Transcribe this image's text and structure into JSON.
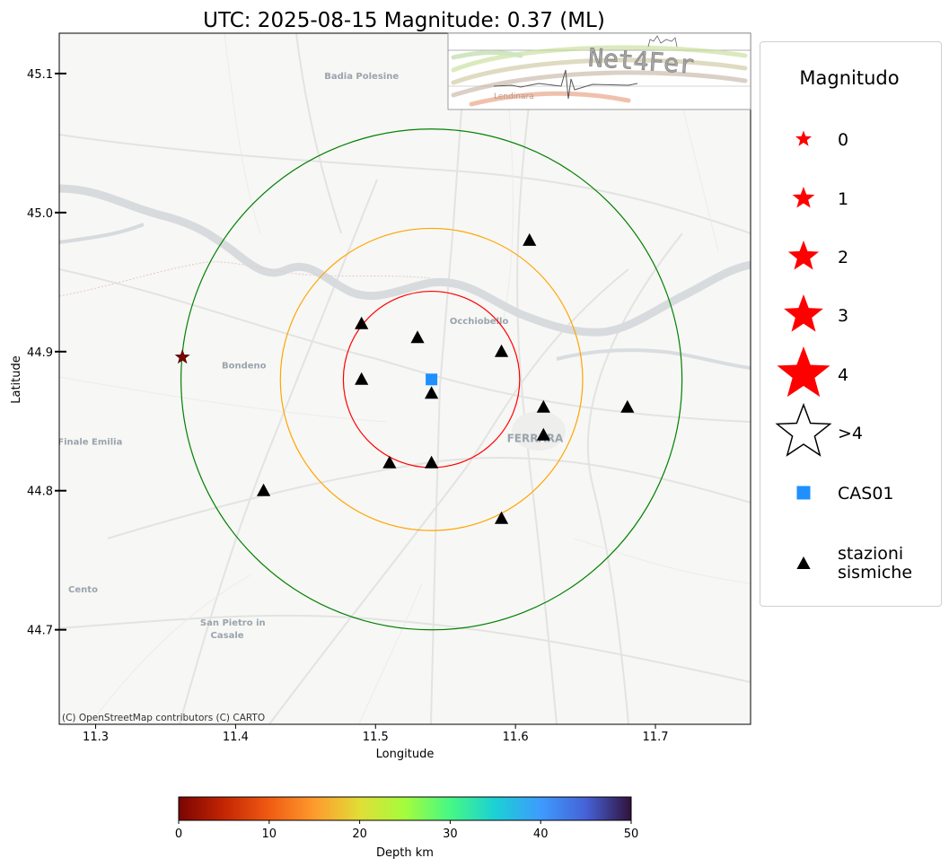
{
  "title": "UTC: 2025-08-15 Magnitude: 0.37 (ML)",
  "map": {
    "xlabel": "Longitude",
    "ylabel": "Latitude",
    "xlim": [
      11.274,
      11.768
    ],
    "ylim": [
      44.632,
      45.129
    ],
    "xticks": [
      11.3,
      11.4,
      11.5,
      11.6,
      11.7
    ],
    "yticks": [
      44.7,
      44.8,
      44.9,
      45.0,
      45.1
    ],
    "attribution": "(C) OpenStreetMap contributors (C) CARTO",
    "place_labels": [
      {
        "text": "Badia Polesine",
        "lon": 11.49,
        "lat": 45.096
      },
      {
        "text": "Occhiobello",
        "lon": 11.574,
        "lat": 44.92
      },
      {
        "text": "Bondeno",
        "lon": 11.406,
        "lat": 44.888
      },
      {
        "text": "Finale Emilia",
        "lon": 11.296,
        "lat": 44.833
      },
      {
        "text": "FERRARA",
        "lon": 11.614,
        "lat": 44.835
      },
      {
        "text": "Cento",
        "lon": 11.291,
        "lat": 44.727
      },
      {
        "text": "San Pietro in",
        "lon": 11.398,
        "lat": 44.703
      },
      {
        "text": "Casale",
        "lon": 11.394,
        "lat": 44.694
      }
    ]
  },
  "chart_data": {
    "type": "scatter",
    "title": "UTC: 2025-08-15 Magnitude: 0.37 (ML)",
    "xlabel": "Longitude",
    "ylabel": "Latitude",
    "xlim": [
      11.274,
      11.768
    ],
    "ylim": [
      44.632,
      45.129
    ],
    "event": {
      "lon": 11.362,
      "lat": 44.896,
      "magnitude": 0.37,
      "depth_km": 2,
      "color": "#7a0403"
    },
    "reference_station": {
      "name": "CAS01",
      "lon": 11.54,
      "lat": 44.88,
      "color": "#1e90ff"
    },
    "stations": [
      {
        "lon": 11.61,
        "lat": 44.98
      },
      {
        "lon": 11.49,
        "lat": 44.92
      },
      {
        "lon": 11.53,
        "lat": 44.91
      },
      {
        "lon": 11.59,
        "lat": 44.9
      },
      {
        "lon": 11.49,
        "lat": 44.88
      },
      {
        "lon": 11.54,
        "lat": 44.87
      },
      {
        "lon": 11.62,
        "lat": 44.86
      },
      {
        "lon": 11.68,
        "lat": 44.86
      },
      {
        "lon": 11.62,
        "lat": 44.84
      },
      {
        "lon": 11.51,
        "lat": 44.82
      },
      {
        "lon": 11.54,
        "lat": 44.82
      },
      {
        "lon": 11.42,
        "lat": 44.8
      },
      {
        "lon": 11.59,
        "lat": 44.78
      }
    ],
    "circles": [
      {
        "center_lon": 11.54,
        "center_lat": 44.88,
        "radius_deg_lon": 0.063,
        "color": "#ff0000"
      },
      {
        "center_lon": 11.54,
        "center_lat": 44.88,
        "radius_deg_lon": 0.108,
        "color": "#ffa500"
      },
      {
        "center_lon": 11.54,
        "center_lat": 44.88,
        "radius_deg_lon": 0.179,
        "color": "#008000"
      }
    ]
  },
  "legend": {
    "title": "Magnitudo",
    "items": [
      {
        "label": "0",
        "kind": "star",
        "size": 1,
        "fill": "#ff0000"
      },
      {
        "label": "1",
        "kind": "star",
        "size": 2,
        "fill": "#ff0000"
      },
      {
        "label": "2",
        "kind": "star",
        "size": 3,
        "fill": "#ff0000"
      },
      {
        "label": "3",
        "kind": "star",
        "size": 4,
        "fill": "#ff0000"
      },
      {
        "label": "4",
        "kind": "star",
        "size": 5,
        "fill": "#ff0000"
      },
      {
        "label": ">4",
        "kind": "star-outline",
        "size": 5,
        "fill": "#ffffff"
      },
      {
        "label": "CAS01",
        "kind": "square",
        "size": 1,
        "fill": "#1e90ff"
      },
      {
        "label": "stazioni\nsismiche",
        "kind": "triangle",
        "size": 1,
        "fill": "#000000"
      }
    ]
  },
  "colorbar": {
    "label": "Depth km",
    "ticks": [
      0,
      10,
      20,
      30,
      40,
      50
    ],
    "colormap": "turbo_r"
  },
  "logo": {
    "text": "Net4Fer",
    "subtext": "Lendinara"
  }
}
